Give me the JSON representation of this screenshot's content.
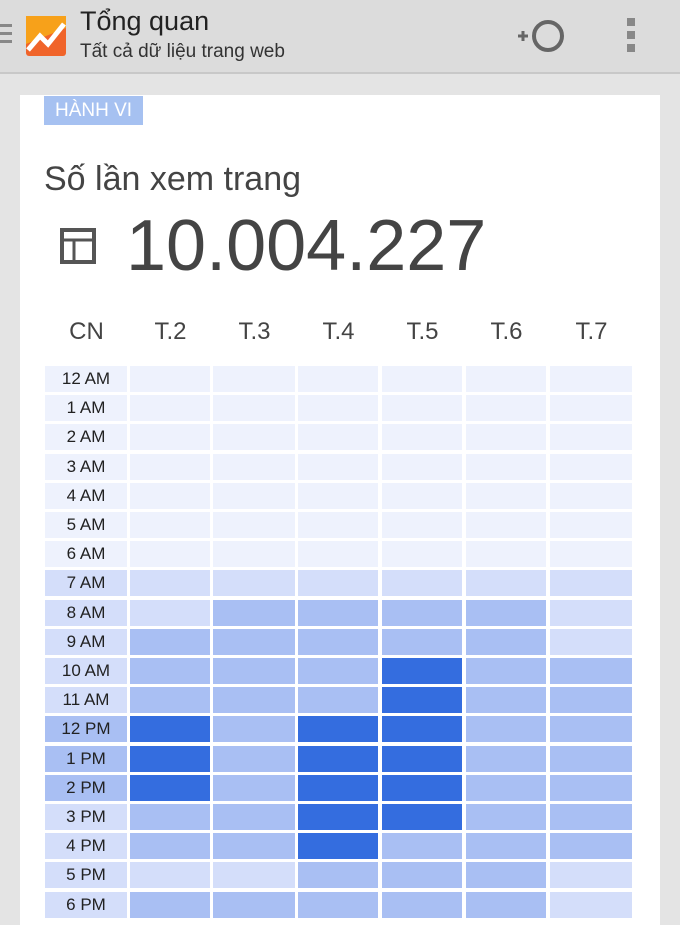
{
  "header": {
    "title": "Tổng quan",
    "subtitle": "Tất cả dữ liệu trang web",
    "icons": [
      "menu-icon",
      "analytics-logo",
      "add-segment-icon",
      "more-vert-icon"
    ]
  },
  "card": {
    "badge": "HÀNH VI",
    "metric_label": "Số lần xem trang",
    "metric_value": "10.004.227",
    "metric_icon": "table-icon"
  },
  "colors": {
    "level0": "#eef2fd",
    "level1": "#d4defa",
    "level2": "#a9bff3",
    "level3": "#346ddf"
  },
  "chart_data": {
    "type": "heatmap",
    "columns": [
      "CN",
      "T.2",
      "T.3",
      "T.4",
      "T.5",
      "T.6",
      "T.7"
    ],
    "rows": [
      {
        "label": "12 AM",
        "label_level": 0,
        "levels": [
          0,
          0,
          0,
          0,
          0,
          0
        ]
      },
      {
        "label": "1 AM",
        "label_level": 0,
        "levels": [
          0,
          0,
          0,
          0,
          0,
          0
        ]
      },
      {
        "label": "2 AM",
        "label_level": 0,
        "levels": [
          0,
          0,
          0,
          0,
          0,
          0
        ]
      },
      {
        "label": "3 AM",
        "label_level": 0,
        "levels": [
          0,
          0,
          0,
          0,
          0,
          0
        ]
      },
      {
        "label": "4 AM",
        "label_level": 0,
        "levels": [
          0,
          0,
          0,
          0,
          0,
          0
        ]
      },
      {
        "label": "5 AM",
        "label_level": 0,
        "levels": [
          0,
          0,
          0,
          0,
          0,
          0
        ]
      },
      {
        "label": "6 AM",
        "label_level": 0,
        "levels": [
          0,
          0,
          0,
          0,
          0,
          0
        ]
      },
      {
        "label": "7 AM",
        "label_level": 1,
        "levels": [
          1,
          1,
          1,
          1,
          1,
          1
        ]
      },
      {
        "label": "8 AM",
        "label_level": 1,
        "levels": [
          1,
          2,
          2,
          2,
          2,
          1
        ]
      },
      {
        "label": "9 AM",
        "label_level": 1,
        "levels": [
          2,
          2,
          2,
          2,
          2,
          1
        ]
      },
      {
        "label": "10 AM",
        "label_level": 1,
        "levels": [
          2,
          2,
          2,
          3,
          2,
          2
        ]
      },
      {
        "label": "11 AM",
        "label_level": 1,
        "levels": [
          2,
          2,
          2,
          3,
          2,
          2
        ]
      },
      {
        "label": "12 PM",
        "label_level": 2,
        "levels": [
          3,
          2,
          3,
          3,
          2,
          2
        ]
      },
      {
        "label": "1 PM",
        "label_level": 2,
        "levels": [
          3,
          2,
          3,
          3,
          2,
          2
        ]
      },
      {
        "label": "2 PM",
        "label_level": 2,
        "levels": [
          3,
          2,
          3,
          3,
          2,
          2
        ]
      },
      {
        "label": "3 PM",
        "label_level": 1,
        "levels": [
          2,
          2,
          3,
          3,
          2,
          2
        ]
      },
      {
        "label": "4 PM",
        "label_level": 1,
        "levels": [
          2,
          2,
          3,
          2,
          2,
          2
        ]
      },
      {
        "label": "5 PM",
        "label_level": 1,
        "levels": [
          1,
          1,
          2,
          2,
          2,
          1
        ]
      },
      {
        "label": "6 PM",
        "label_level": 1,
        "levels": [
          2,
          2,
          2,
          2,
          2,
          1
        ]
      }
    ]
  }
}
